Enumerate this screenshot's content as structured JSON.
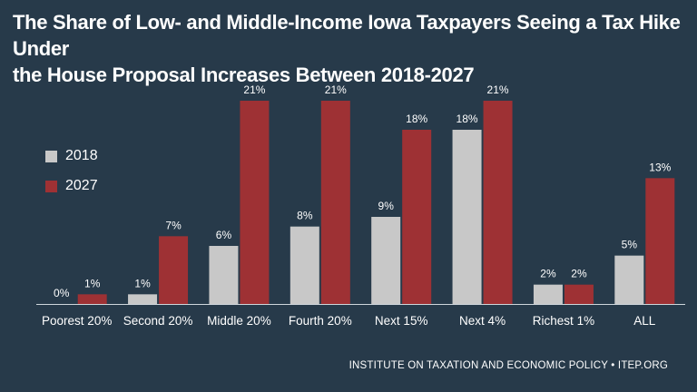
{
  "title_line1": "The Share of Low- and Middle-Income Iowa Taxpayers Seeing a Tax Hike Under",
  "title_line2": "the House Proposal Increases Between 2018-2027",
  "source": "INSTITUTE ON TAXATION AND ECONOMIC POLICY • ITEP.ORG",
  "colors": {
    "background": "#273a4a",
    "series_2018": "#c8c8c8",
    "series_2027": "#9e3134",
    "axis": "#cfd6dc",
    "text": "#ffffff"
  },
  "chart_data": {
    "type": "bar",
    "title": "The Share of Low- and Middle-Income Iowa Taxpayers Seeing a Tax Hike Under the House Proposal Increases Between 2018-2027",
    "categories": [
      "Poorest 20%",
      "Second 20%",
      "Middle 20%",
      "Fourth 20%",
      "Next 15%",
      "Next 4%",
      "Richest 1%",
      "ALL"
    ],
    "series": [
      {
        "name": "2018",
        "values": [
          0,
          1,
          6,
          8,
          9,
          18,
          2,
          5
        ],
        "labels": [
          "0%",
          "1%",
          "6%",
          "8%",
          "9%",
          "18%",
          "2%",
          "5%"
        ]
      },
      {
        "name": "2027",
        "values": [
          1,
          7,
          21,
          21,
          18,
          21,
          2,
          13
        ],
        "labels": [
          "1%",
          "7%",
          "21%",
          "21%",
          "18%",
          "21%",
          "2%",
          "13%"
        ]
      }
    ],
    "ylim": [
      0,
      22.5
    ],
    "grid": false,
    "legend_position": "left"
  }
}
